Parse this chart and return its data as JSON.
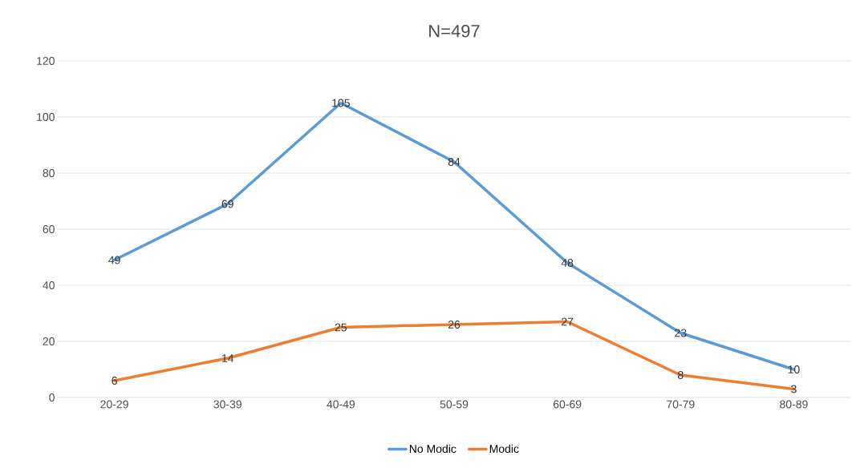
{
  "chart_data": {
    "type": "line",
    "title": "N=497",
    "categories": [
      "20-29",
      "30-39",
      "40-49",
      "50-59",
      "60-69",
      "70-79",
      "80-89"
    ],
    "series": [
      {
        "name": "No Modic",
        "color": "#5b9bd5",
        "values": [
          49,
          69,
          105,
          84,
          48,
          23,
          10
        ]
      },
      {
        "name": "Modic",
        "color": "#ed7d31",
        "values": [
          6,
          14,
          25,
          26,
          27,
          8,
          3
        ]
      }
    ],
    "ylim": [
      0,
      120
    ],
    "yticks": [
      0,
      20,
      40,
      60,
      80,
      100,
      120
    ],
    "grid": "y",
    "legend": "bottom",
    "data_labels": true,
    "line_style": "solid"
  }
}
